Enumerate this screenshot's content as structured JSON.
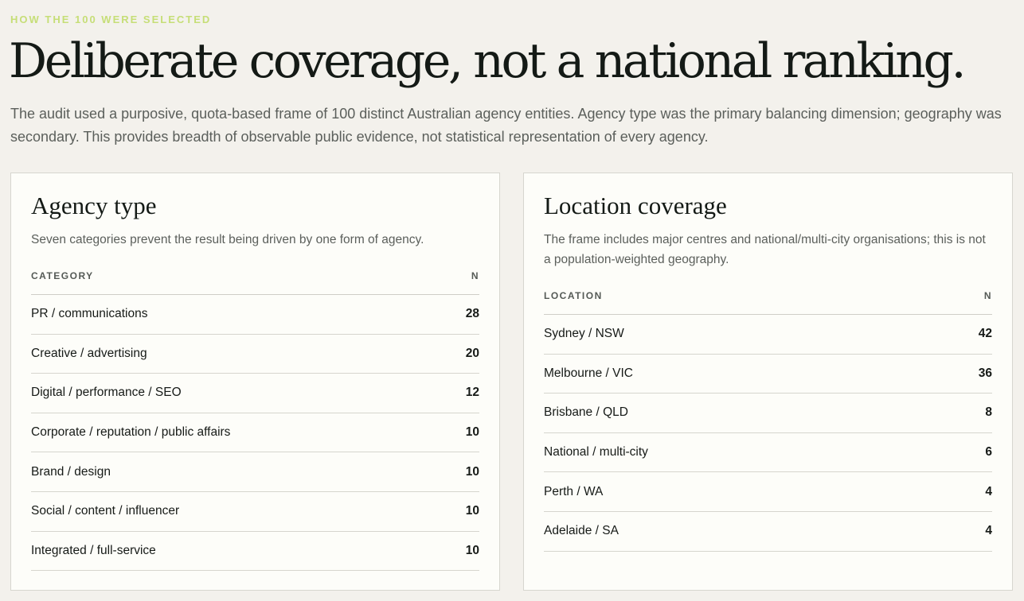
{
  "header": {
    "eyebrow": "HOW THE 100 WERE SELECTED",
    "title": "Deliberate coverage, not a national ranking.",
    "intro": "The audit used a purposive, quota-based frame of 100 distinct Australian agency entities. Agency type was the primary balancing dimension; geography was secondary. This provides breadth of observable public evidence, not statistical representation of every agency."
  },
  "agency_type": {
    "title": "Agency type",
    "description": "Seven categories prevent the result being driven by one form of agency.",
    "col_label": "CATEGORY",
    "col_n": "N",
    "rows": [
      {
        "label": "PR / communications",
        "n": "28"
      },
      {
        "label": "Creative / advertising",
        "n": "20"
      },
      {
        "label": "Digital / performance / SEO",
        "n": "12"
      },
      {
        "label": "Corporate / reputation / public affairs",
        "n": "10"
      },
      {
        "label": "Brand / design",
        "n": "10"
      },
      {
        "label": "Social / content / influencer",
        "n": "10"
      },
      {
        "label": "Integrated / full-service",
        "n": "10"
      }
    ]
  },
  "location": {
    "title": "Location coverage",
    "description": "The frame includes major centres and national/multi-city organisations; this is not a population-weighted geography.",
    "col_label": "LOCATION",
    "col_n": "N",
    "rows": [
      {
        "label": "Sydney / NSW",
        "n": "42"
      },
      {
        "label": "Melbourne / VIC",
        "n": "36"
      },
      {
        "label": "Brisbane / QLD",
        "n": "8"
      },
      {
        "label": "National / multi-city",
        "n": "6"
      },
      {
        "label": "Perth / WA",
        "n": "4"
      },
      {
        "label": "Adelaide / SA",
        "n": "4"
      }
    ]
  }
}
